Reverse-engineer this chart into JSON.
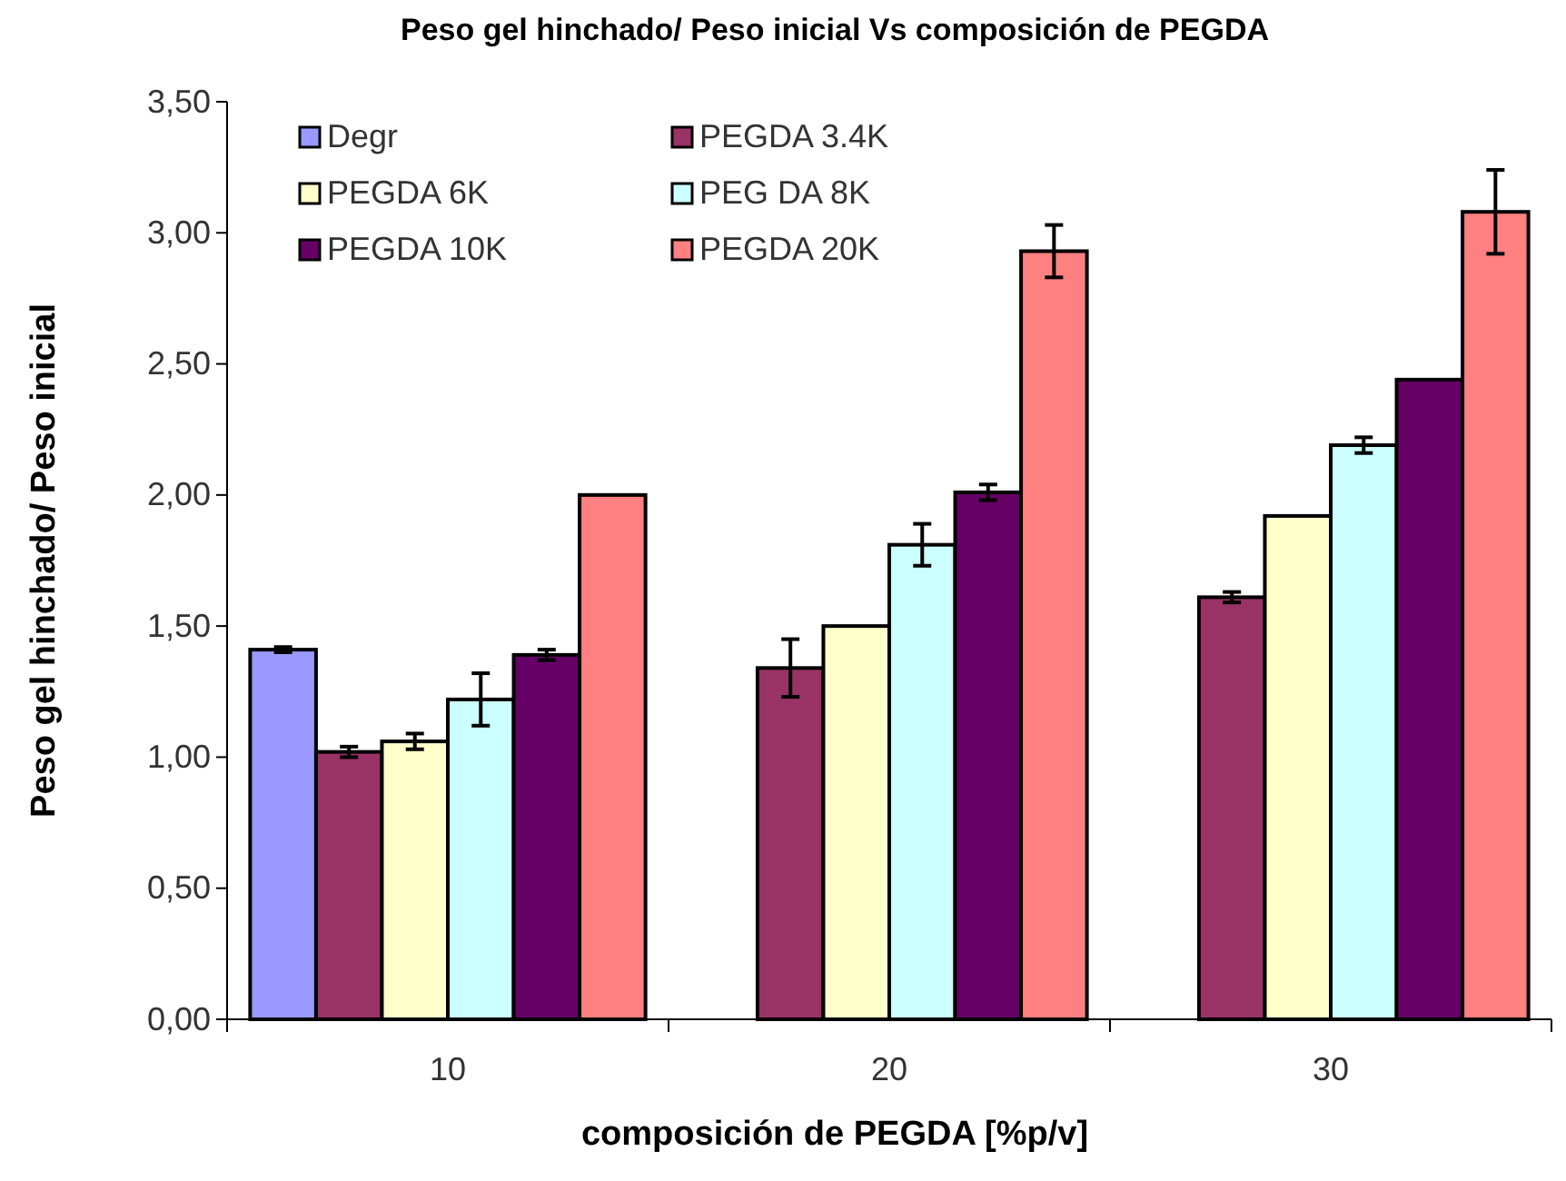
{
  "chart_data": {
    "type": "bar",
    "title": "Peso gel hinchado/ Peso inicial  Vs composición de PEGDA",
    "xlabel": "composición de PEGDA [%p/v]",
    "ylabel": "Peso gel hinchado/ Peso inicial",
    "categories": [
      "10",
      "20",
      "30"
    ],
    "series": [
      {
        "name": "Degr",
        "color": "#9999ff",
        "values": [
          1.41,
          null,
          null
        ],
        "errors": [
          0.01,
          null,
          null
        ]
      },
      {
        "name": "PEGDA 3.4K",
        "color": "#993366",
        "values": [
          1.02,
          1.34,
          1.61
        ],
        "errors": [
          0.02,
          0.11,
          0.02
        ]
      },
      {
        "name": "PEGDA 6K",
        "color": "#ffffcc",
        "values": [
          1.06,
          1.5,
          1.92
        ],
        "errors": [
          0.03,
          null,
          null
        ]
      },
      {
        "name": "PEG DA 8K",
        "color": "#ccffff",
        "values": [
          1.22,
          1.81,
          2.19
        ],
        "errors": [
          0.1,
          0.08,
          0.03
        ]
      },
      {
        "name": "PEGDA 10K",
        "color": "#660066",
        "values": [
          1.39,
          2.01,
          2.44
        ],
        "errors": [
          0.02,
          0.03,
          null
        ]
      },
      {
        "name": "PEGDA 20K",
        "color": "#ff8080",
        "values": [
          2.0,
          2.93,
          3.08
        ],
        "errors": [
          null,
          0.1,
          0.16
        ]
      }
    ],
    "ylim": [
      0,
      3.5
    ],
    "yticks": [
      {
        "value": 0,
        "label": "0,00"
      },
      {
        "value": 0.5,
        "label": "0,50"
      },
      {
        "value": 1,
        "label": "1,00"
      },
      {
        "value": 1.5,
        "label": "1,50"
      },
      {
        "value": 2,
        "label": "2,00"
      },
      {
        "value": 2.5,
        "label": "2,50"
      },
      {
        "value": 3,
        "label": "3,00"
      },
      {
        "value": 3.5,
        "label": "3,50"
      }
    ],
    "grid": false,
    "legend": "top left"
  }
}
